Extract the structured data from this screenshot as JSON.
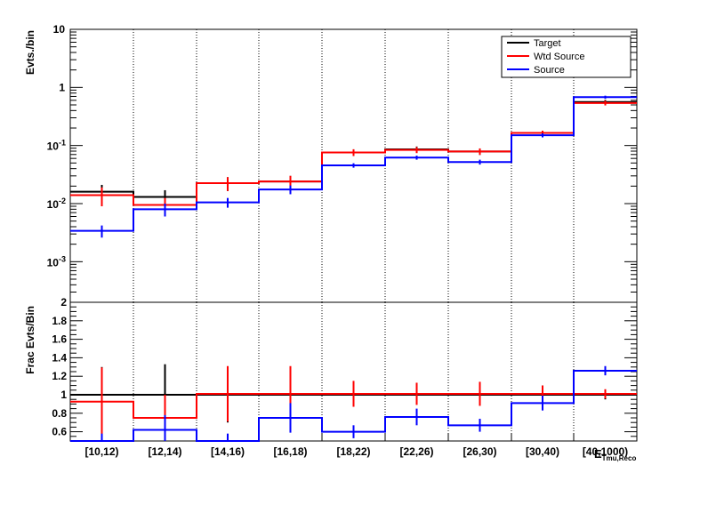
{
  "chart_data": [
    {
      "type": "line",
      "ylabel": "Evts./bin",
      "yscale": "log",
      "ylim": [
        0.0002,
        10
      ],
      "ytick_labels": [
        "10",
        "1",
        "10^-1",
        "10^-2",
        "10^-3"
      ],
      "categories": [
        "[10,12)",
        "[12,14)",
        "[14,16)",
        "[16,18)",
        "[18,22)",
        "[22,26)",
        "[26,30)",
        "[30,40)",
        "[40,1000)"
      ],
      "grid_x": "dotted",
      "legend_position": "top-right",
      "series": [
        {
          "name": "Target",
          "color": "#000000",
          "values": [
            0.016,
            0.013,
            0.0225,
            0.024,
            0.076,
            0.086,
            0.079,
            0.165,
            0.56
          ],
          "errors": [
            0.005,
            0.004,
            0.006,
            0.006,
            0.01,
            0.01,
            0.01,
            0.015,
            0.05
          ]
        },
        {
          "name": "Wtd Source",
          "color": "#ff0000",
          "values": [
            0.014,
            0.0095,
            0.0225,
            0.024,
            0.076,
            0.084,
            0.079,
            0.165,
            0.54
          ],
          "errors": [
            0.005,
            0.003,
            0.006,
            0.006,
            0.01,
            0.01,
            0.01,
            0.015,
            0.05
          ]
        },
        {
          "name": "Source",
          "color": "#0000ff",
          "values": [
            0.0034,
            0.008,
            0.0105,
            0.0175,
            0.0455,
            0.062,
            0.052,
            0.15,
            0.68
          ],
          "errors": [
            0.0008,
            0.002,
            0.002,
            0.003,
            0.004,
            0.005,
            0.005,
            0.012,
            0.04
          ]
        }
      ]
    },
    {
      "type": "line",
      "ylabel": "Frac Evts/Bin",
      "ylim": [
        0.5,
        2
      ],
      "ytick_labels": [
        "0.6",
        "0.8",
        "1",
        "1.2",
        "1.4",
        "1.6",
        "1.8",
        "2"
      ],
      "xlabel": "E_{Tmu,Reco}",
      "categories": [
        "[10,12)",
        "[12,14)",
        "[14,16)",
        "[16,18)",
        "[18,22)",
        "[22,26)",
        "[26,30)",
        "[30,40)",
        "[40,1000)"
      ],
      "grid_x": "dotted",
      "series": [
        {
          "name": "Target",
          "color": "#000000",
          "values": [
            1.0,
            1.0,
            1.0,
            1.0,
            1.0,
            1.0,
            1.0,
            1.0,
            1.0
          ],
          "errors": [
            0.3,
            0.33,
            0.3,
            0.3,
            0.1,
            0.1,
            0.1,
            0.1,
            0.05
          ]
        },
        {
          "name": "Wtd Source",
          "color": "#ff0000",
          "values": [
            0.925,
            0.75,
            1.01,
            1.01,
            1.01,
            1.01,
            1.01,
            1.01,
            1.01
          ],
          "errors": [
            0.37,
            0.25,
            0.3,
            0.3,
            0.14,
            0.12,
            0.13,
            0.09,
            0.05
          ]
        },
        {
          "name": "Source",
          "color": "#0000ff",
          "values": [
            0.48,
            0.62,
            0.48,
            0.75,
            0.6,
            0.76,
            0.67,
            0.91,
            1.26
          ],
          "errors": [
            0.1,
            0.16,
            0.1,
            0.16,
            0.07,
            0.09,
            0.07,
            0.08,
            0.05
          ]
        }
      ]
    }
  ]
}
